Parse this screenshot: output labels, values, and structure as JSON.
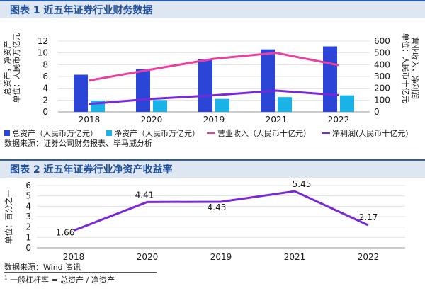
{
  "chart_data": [
    {
      "type": "bar",
      "title": "图表 1 近五年证券行业财务数据",
      "categories": [
        "2018",
        "2020",
        "2019",
        "2021",
        "2022"
      ],
      "ylabel": "总资产，净资产\n单位：人民币万亿元",
      "y2label": "营业收入，净利润\n单位：人民币十亿元",
      "ylim": [
        0,
        12
      ],
      "y2lim": [
        0,
        600
      ],
      "yticks": [
        0,
        2,
        4,
        6,
        8,
        10,
        12
      ],
      "y2ticks": [
        0,
        100,
        200,
        300,
        400,
        500,
        600
      ],
      "series": [
        {
          "name": "总资产（人民币万亿元）",
          "type": "bar",
          "axis": "left",
          "color": "#2b45d6",
          "values": [
            6.3,
            7.3,
            8.9,
            10.6,
            11.1
          ]
        },
        {
          "name": "净资产（人民币万亿元）",
          "type": "bar",
          "axis": "left",
          "color": "#19b3e8",
          "values": [
            1.9,
            2.0,
            2.2,
            2.5,
            2.8
          ]
        },
        {
          "name": "营业收入（人民币十亿元）",
          "type": "line",
          "axis": "right",
          "color": "#ec3fa0",
          "values": [
            266,
            360,
            450,
            500,
            396
          ]
        },
        {
          "name": "净利润(人民币十亿元)",
          "type": "line",
          "axis": "right",
          "color": "#7a28d8",
          "values": [
            67,
            110,
            140,
            180,
            142
          ]
        }
      ],
      "source": "数据来源：证券公司财务报表、毕马威分析"
    },
    {
      "type": "line",
      "title": "图表 2 近五年证券行业净资产收益率",
      "categories": [
        "2018",
        "2020",
        "2019",
        "2021",
        "2022"
      ],
      "ylabel": "单位：百分之一",
      "ylim": [
        0,
        6
      ],
      "yticks": [
        0,
        1,
        2,
        3,
        4,
        5,
        6
      ],
      "series": [
        {
          "color": "#7a28d8",
          "values": [
            1.66,
            4.41,
            4.43,
            5.45,
            2.17
          ]
        }
      ],
      "data_labels": [
        "1.66",
        "4.41",
        "4.43",
        "5.45",
        "2.17"
      ],
      "source": "数据来源：Wind 资讯"
    }
  ],
  "footnote": {
    "mark": "1",
    "text": "一般杠杆率 = 总资产 / 净资产"
  }
}
